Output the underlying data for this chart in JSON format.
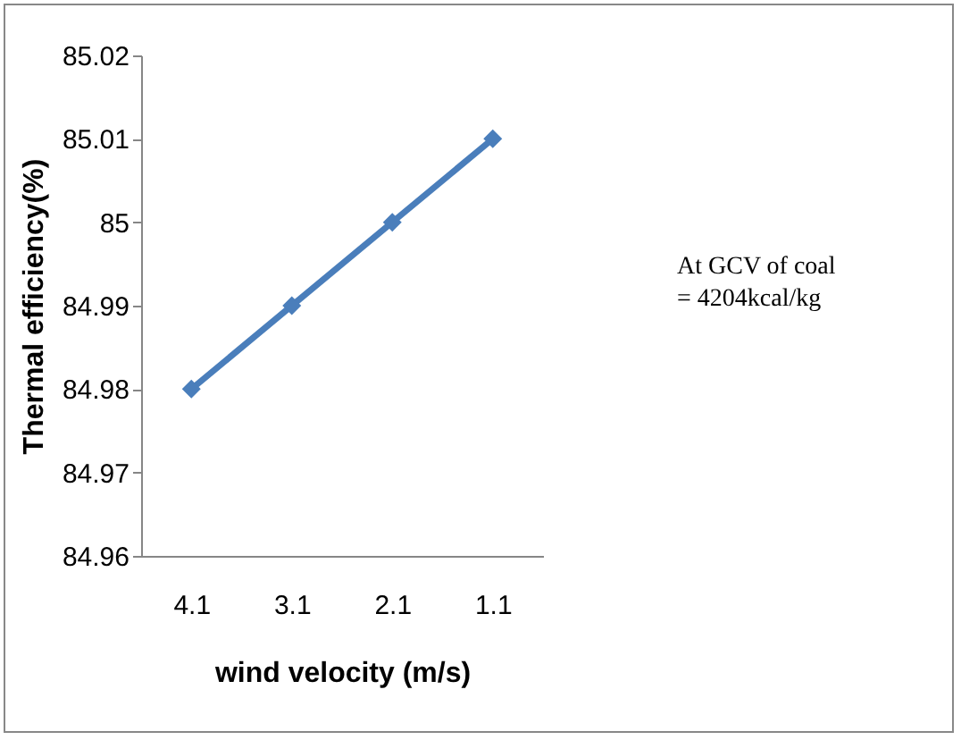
{
  "chart_data": {
    "type": "line",
    "xlabel": "wind velocity (m/s)",
    "ylabel": "Thermal efficiency(%)",
    "categories": [
      "4.1",
      "3.1",
      "2.1",
      "1.1"
    ],
    "series": [
      {
        "color": "#4a7ebb",
        "values": [
          84.98,
          84.99,
          85,
          85.01
        ]
      }
    ],
    "ylim": [
      84.96,
      85.02
    ],
    "yticks": [
      84.96,
      84.97,
      84.98,
      84.99,
      85,
      85.01,
      85.02
    ],
    "grid": false,
    "legend": false,
    "marker": "diamond",
    "line_style": "solid",
    "annotations": [
      "At GCV of coal",
      "= 4204kcal/kg"
    ]
  }
}
